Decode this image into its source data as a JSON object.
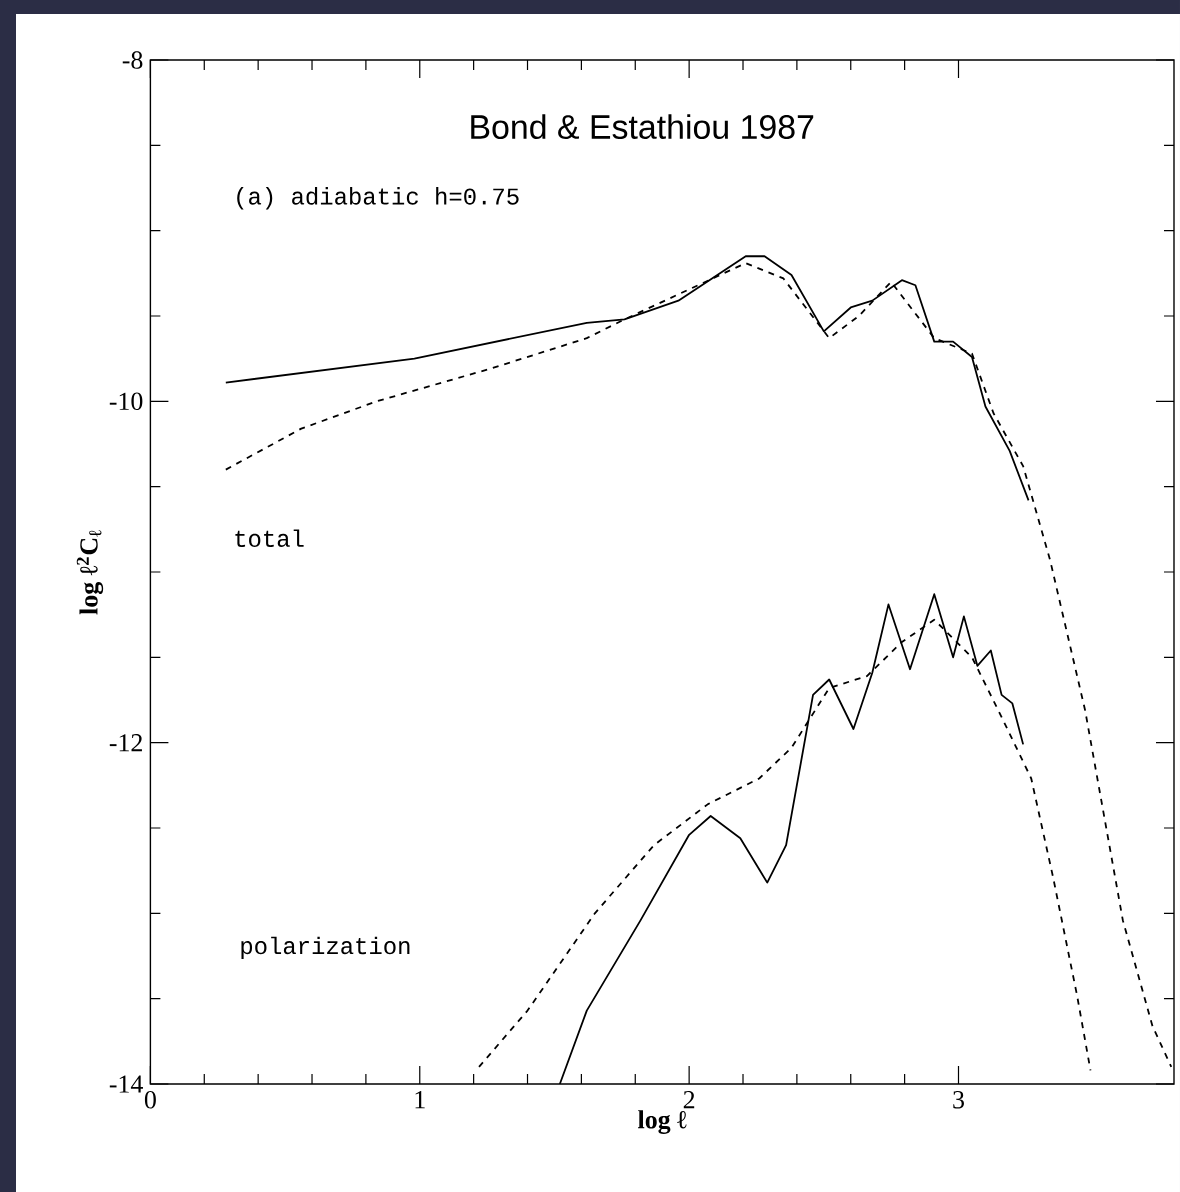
{
  "chart_data": {
    "type": "line",
    "title": "Bond & Estathiou 1987",
    "xlabel": "log ℓ",
    "ylabel": "log ℓ$^{2}$C$_{ℓ}$",
    "annotations": [
      "(a) adiabatic h=0.75",
      "total",
      "polarization"
    ],
    "xlim": [
      0,
      3.8
    ],
    "ylim": [
      -14,
      -8
    ],
    "xticks": [
      0,
      1,
      2,
      3
    ],
    "yticks": [
      -14,
      -12,
      -10,
      -8
    ],
    "series": [
      {
        "color": "#000000",
        "line_style": "solid",
        "x": [
          0.28,
          0.98,
          1.62,
          1.76,
          1.96,
          2.21,
          2.28,
          2.38,
          2.5,
          2.6,
          2.68,
          2.79,
          2.84,
          2.91,
          2.98,
          3.05,
          3.1,
          3.19,
          3.26
        ],
        "values": [
          -9.89,
          -9.75,
          -9.54,
          -9.52,
          -9.41,
          -9.15,
          -9.15,
          -9.26,
          -9.59,
          -9.45,
          -9.41,
          -9.29,
          -9.32,
          -9.65,
          -9.65,
          -9.74,
          -10.03,
          -10.29,
          -10.58
        ]
      },
      {
        "color": "#000000",
        "line_style": "dashed",
        "x": [
          0.28,
          0.56,
          0.84,
          1.26,
          1.62,
          1.76,
          2.21,
          2.35,
          2.52,
          2.63,
          2.75,
          2.91,
          3.05,
          3.13,
          3.24,
          3.34,
          3.47,
          3.61,
          3.72,
          3.79
        ],
        "values": [
          -10.4,
          -10.16,
          -10.0,
          -9.81,
          -9.63,
          -9.52,
          -9.19,
          -9.28,
          -9.63,
          -9.5,
          -9.3,
          -9.63,
          -9.72,
          -10.07,
          -10.38,
          -10.93,
          -11.81,
          -13.04,
          -13.66,
          -13.9
        ]
      },
      {
        "color": "#000000",
        "line_style": "solid",
        "x": [
          1.52,
          1.62,
          1.82,
          2.0,
          2.08,
          2.19,
          2.29,
          2.36,
          2.46,
          2.52,
          2.61,
          2.68,
          2.74,
          2.82,
          2.91,
          2.98,
          3.02,
          3.07,
          3.12,
          3.16,
          3.2,
          3.24
        ],
        "values": [
          -14.0,
          -13.57,
          -13.04,
          -12.54,
          -12.43,
          -12.56,
          -12.82,
          -12.6,
          -11.72,
          -11.63,
          -11.92,
          -11.59,
          -11.19,
          -11.57,
          -11.13,
          -11.5,
          -11.26,
          -11.55,
          -11.46,
          -11.72,
          -11.77,
          -12.01
        ]
      },
      {
        "color": "#000000",
        "line_style": "dashed",
        "x": [
          1.22,
          1.4,
          1.65,
          1.87,
          2.07,
          2.26,
          2.38,
          2.52,
          2.66,
          2.79,
          2.91,
          3.05,
          3.16,
          3.27,
          3.35,
          3.44,
          3.49
        ],
        "values": [
          -13.9,
          -13.57,
          -13.0,
          -12.6,
          -12.36,
          -12.21,
          -12.03,
          -11.68,
          -11.61,
          -11.41,
          -11.28,
          -11.5,
          -11.85,
          -12.21,
          -12.78,
          -13.48,
          -13.92
        ]
      }
    ]
  }
}
